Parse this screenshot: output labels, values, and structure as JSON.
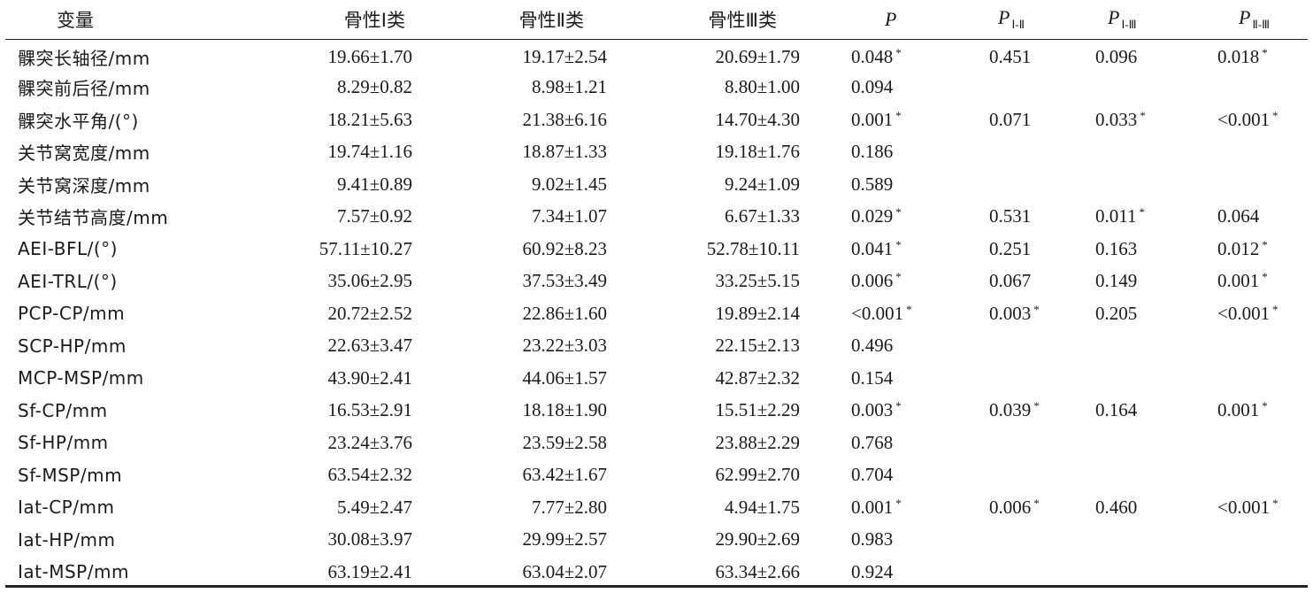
{
  "header": {
    "variable": "变量",
    "group1": "骨性Ⅰ类",
    "group2": "骨性Ⅱ类",
    "group3": "骨性Ⅲ类",
    "p": "P",
    "p12_main": "P",
    "p12_sub": "Ⅰ-Ⅱ",
    "p13_main": "P",
    "p13_sub": "Ⅰ-Ⅲ",
    "p23_main": "P",
    "p23_sub": "Ⅱ-Ⅲ"
  },
  "rows": [
    {
      "variable": "髁突长轴径/mm",
      "g1": "19.66±1.70",
      "g2": "19.17±2.54",
      "g3": "20.69±1.79",
      "p": "0.048",
      "p_star": "*",
      "p12": "0.451",
      "p12_star": "",
      "p13": "0.096",
      "p13_star": "",
      "p23": "0.018",
      "p23_star": "*"
    },
    {
      "variable": "髁突前后径/mm",
      "g1": "8.29±0.82",
      "g2": "8.98±1.21",
      "g3": "8.80±1.00",
      "p": "0.094",
      "p_star": "",
      "p12": "",
      "p12_star": "",
      "p13": "",
      "p13_star": "",
      "p23": "",
      "p23_star": ""
    },
    {
      "variable": "髁突水平角/(°)",
      "g1": "18.21±5.63",
      "g2": "21.38±6.16",
      "g3": "14.70±4.30",
      "p": "0.001",
      "p_star": "*",
      "p12": "0.071",
      "p12_star": "",
      "p13": "0.033",
      "p13_star": "*",
      "p23": "<0.001",
      "p23_star": "*"
    },
    {
      "variable": "关节窝宽度/mm",
      "g1": "19.74±1.16",
      "g2": "18.87±1.33",
      "g3": "19.18±1.76",
      "p": "0.186",
      "p_star": "",
      "p12": "",
      "p12_star": "",
      "p13": "",
      "p13_star": "",
      "p23": "",
      "p23_star": ""
    },
    {
      "variable": "关节窝深度/mm",
      "g1": "9.41±0.89",
      "g2": "9.02±1.45",
      "g3": "9.24±1.09",
      "p": "0.589",
      "p_star": "",
      "p12": "",
      "p12_star": "",
      "p13": "",
      "p13_star": "",
      "p23": "",
      "p23_star": ""
    },
    {
      "variable": "关节结节高度/mm",
      "g1": "7.57±0.92",
      "g2": "7.34±1.07",
      "g3": "6.67±1.33",
      "p": "0.029",
      "p_star": "*",
      "p12": "0.531",
      "p12_star": "",
      "p13": "0.011",
      "p13_star": "*",
      "p23": "0.064",
      "p23_star": ""
    },
    {
      "variable": "AEI-BFL/(°)",
      "g1": "57.11±10.27",
      "g2": "60.92±8.23",
      "g3": "52.78±10.11",
      "p": "0.041",
      "p_star": "*",
      "p12": "0.251",
      "p12_star": "",
      "p13": "0.163",
      "p13_star": "",
      "p23": "0.012",
      "p23_star": "*"
    },
    {
      "variable": "AEI-TRL/(°)",
      "g1": "35.06±2.95",
      "g2": "37.53±3.49",
      "g3": "33.25±5.15",
      "p": "0.006",
      "p_star": "*",
      "p12": "0.067",
      "p12_star": "",
      "p13": "0.149",
      "p13_star": "",
      "p23": "0.001",
      "p23_star": "*"
    },
    {
      "variable": "PCP-CP/mm",
      "g1": "20.72±2.52",
      "g2": "22.86±1.60",
      "g3": "19.89±2.14",
      "p": "<0.001",
      "p_star": "*",
      "p12": "0.003",
      "p12_star": "*",
      "p13": "0.205",
      "p13_star": "",
      "p23": "<0.001",
      "p23_star": "*"
    },
    {
      "variable": "SCP-HP/mm",
      "g1": "22.63±3.47",
      "g2": "23.22±3.03",
      "g3": "22.15±2.13",
      "p": "0.496",
      "p_star": "",
      "p12": "",
      "p12_star": "",
      "p13": "",
      "p13_star": "",
      "p23": "",
      "p23_star": ""
    },
    {
      "variable": "MCP-MSP/mm",
      "g1": "43.90±2.41",
      "g2": "44.06±1.57",
      "g3": "42.87±2.32",
      "p": "0.154",
      "p_star": "",
      "p12": "",
      "p12_star": "",
      "p13": "",
      "p13_star": "",
      "p23": "",
      "p23_star": ""
    },
    {
      "variable": "Sf-CP/mm",
      "g1": "16.53±2.91",
      "g2": "18.18±1.90",
      "g3": "15.51±2.29",
      "p": "0.003",
      "p_star": "*",
      "p12": "0.039",
      "p12_star": "*",
      "p13": "0.164",
      "p13_star": "",
      "p23": "0.001",
      "p23_star": "*"
    },
    {
      "variable": "Sf-HP/mm",
      "g1": "23.24±3.76",
      "g2": "23.59±2.58",
      "g3": "23.88±2.29",
      "p": "0.768",
      "p_star": "",
      "p12": "",
      "p12_star": "",
      "p13": "",
      "p13_star": "",
      "p23": "",
      "p23_star": ""
    },
    {
      "variable": "Sf-MSP/mm",
      "g1": "63.54±2.32",
      "g2": "63.42±1.67",
      "g3": "62.99±2.70",
      "p": "0.704",
      "p_star": "",
      "p12": "",
      "p12_star": "",
      "p13": "",
      "p13_star": "",
      "p23": "",
      "p23_star": ""
    },
    {
      "variable": "Iat-CP/mm",
      "g1": "5.49±2.47",
      "g2": "7.77±2.80",
      "g3": "4.94±1.75",
      "p": "0.001",
      "p_star": "*",
      "p12": "0.006",
      "p12_star": "*",
      "p13": "0.460",
      "p13_star": "",
      "p23": "<0.001",
      "p23_star": "*"
    },
    {
      "variable": "Iat-HP/mm",
      "g1": "30.08±3.97",
      "g2": "29.99±2.57",
      "g3": "29.90±2.69",
      "p": "0.983",
      "p_star": "",
      "p12": "",
      "p12_star": "",
      "p13": "",
      "p13_star": "",
      "p23": "",
      "p23_star": ""
    },
    {
      "variable": "Iat-MSP/mm",
      "g1": "63.19±2.41",
      "g2": "63.04±2.07",
      "g3": "63.34±2.66",
      "p": "0.924",
      "p_star": "",
      "p12": "",
      "p12_star": "",
      "p13": "",
      "p13_star": "",
      "p23": "",
      "p23_star": ""
    }
  ]
}
